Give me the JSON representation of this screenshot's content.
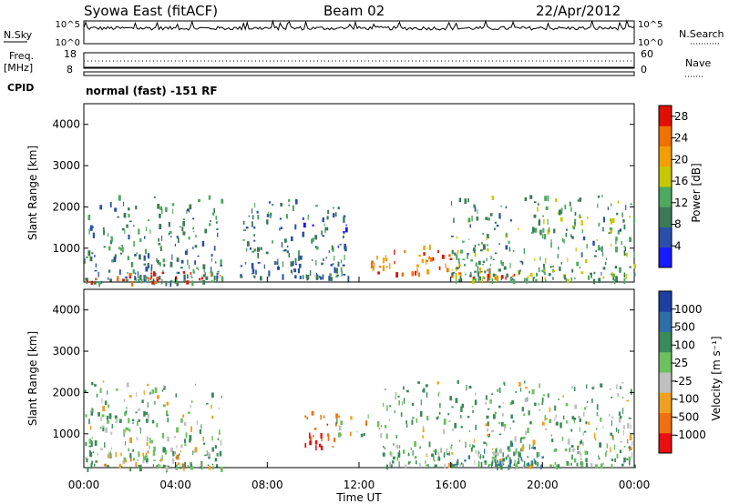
{
  "header": {
    "station": "Syowa East (fitACF)",
    "beam": "Beam 02",
    "date": "22/Apr/2012"
  },
  "strips": {
    "nsky_label": "N.Sky",
    "nsky_ticks": [
      "10^5",
      "10^0"
    ],
    "nsearch_label": "N.Search",
    "nsearch_ticks": [
      "10^5",
      "10^0"
    ],
    "freq_label_line1": "Freq.",
    "freq_label_line2": "[MHz]",
    "freq_ticks": [
      "18",
      "8"
    ],
    "nave_label": "Nave",
    "nave_ticks": [
      "60",
      "0"
    ],
    "cpid_label": "CPID",
    "mode_text": "normal (fast) -151 RF"
  },
  "x_axis": {
    "label": "Time UT",
    "ticks": [
      "00:00",
      "04:00",
      "08:00",
      "12:00",
      "16:00",
      "20:00",
      "00:00"
    ]
  },
  "power_panel": {
    "ylabel": "Slant Range [km]",
    "yticks": [
      "1000",
      "2000",
      "3000",
      "4000"
    ],
    "colorbar_label": "Power [dB]",
    "colorbar_ticks": [
      "4",
      "8",
      "12",
      "16",
      "20",
      "24",
      "28"
    ]
  },
  "velocity_panel": {
    "ylabel": "Slant Range [km]",
    "yticks": [
      "1000",
      "2000",
      "3000",
      "4000"
    ],
    "colorbar_label": "Velocity [m s⁻¹]",
    "colorbar_ticks": [
      "1000",
      "500",
      "100",
      "25",
      "-25",
      "-100",
      "-500",
      "-1000"
    ]
  },
  "colors": {
    "power_scale": [
      "#1a1aff",
      "#2a4fa8",
      "#3b7a57",
      "#4da860",
      "#c8c800",
      "#f2a000",
      "#f07000",
      "#e01000"
    ],
    "velocity_scale": [
      "#1f3fa0",
      "#2f6fa8",
      "#3a8a5a",
      "#6cc060",
      "#c0c0c0",
      "#f0a020",
      "#f07010",
      "#e81010"
    ]
  },
  "chart_data": {
    "type": "heatmap",
    "title": "Syowa East (fitACF) Beam 02 22/Apr/2012",
    "xlabel": "Time UT",
    "ylabel": "Slant Range [km]",
    "x_range_hours": [
      0,
      24
    ],
    "x_ticks": [
      "00:00",
      "04:00",
      "08:00",
      "12:00",
      "16:00",
      "20:00",
      "00:00"
    ],
    "y_range_km": [
      180,
      4500
    ],
    "y_ticks": [
      1000,
      2000,
      3000,
      4000
    ],
    "panels": [
      {
        "name": "Power",
        "unit": "dB",
        "color_range": [
          0,
          30
        ],
        "colorbar_ticks": [
          4,
          8,
          12,
          16,
          20,
          24,
          28
        ],
        "echo_regions": [
          {
            "t_start": 0.0,
            "t_end": 6.0,
            "r_min": 200,
            "r_max": 2300,
            "power_dB": 10
          },
          {
            "t_start": 0.0,
            "t_end": 6.0,
            "r_min": 200,
            "r_max": 450,
            "power_dB": 28
          },
          {
            "t_start": 6.8,
            "t_end": 11.5,
            "r_min": 300,
            "r_max": 2200,
            "power_dB": 8
          },
          {
            "t_start": 12.5,
            "t_end": 16.5,
            "r_min": 400,
            "r_max": 1100,
            "power_dB": 24
          },
          {
            "t_start": 16.0,
            "t_end": 24.0,
            "r_min": 250,
            "r_max": 2300,
            "power_dB": 12
          },
          {
            "t_start": 16.8,
            "t_end": 18.8,
            "r_min": 300,
            "r_max": 600,
            "power_dB": 26
          }
        ]
      },
      {
        "name": "Velocity",
        "unit": "m s^-1",
        "color_range": [
          -1000,
          1000
        ],
        "colorbar_ticks": [
          1000,
          500,
          100,
          25,
          -25,
          -100,
          -500,
          -1000
        ],
        "echo_regions": [
          {
            "t_start": 0.0,
            "t_end": 6.0,
            "r_min": 200,
            "r_max": 2300,
            "velocity": 100
          },
          {
            "t_start": 0.5,
            "t_end": 4.5,
            "r_min": 250,
            "r_max": 600,
            "velocity": -100
          },
          {
            "t_start": 9.5,
            "t_end": 11.0,
            "r_min": 700,
            "r_max": 1600,
            "velocity": -500
          },
          {
            "t_start": 11.0,
            "t_end": 13.0,
            "r_min": 1000,
            "r_max": 1500,
            "velocity": 0
          },
          {
            "t_start": 13.0,
            "t_end": 24.0,
            "r_min": 250,
            "r_max": 2300,
            "velocity": 100
          },
          {
            "t_start": 16.0,
            "t_end": 20.0,
            "r_min": 250,
            "r_max": 800,
            "velocity": 500
          }
        ]
      }
    ]
  }
}
